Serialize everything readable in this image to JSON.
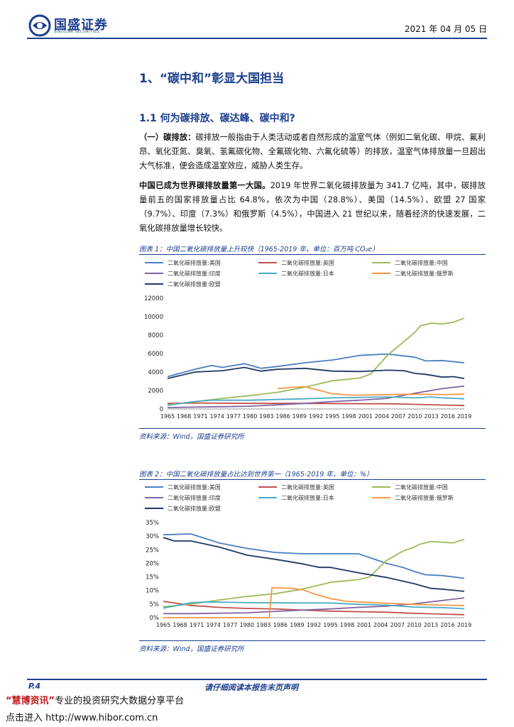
{
  "header": {
    "brand": "国盛证券",
    "brand_sub": "SINOLINK SECURITIES",
    "date": "2021 年 04 月 05 日"
  },
  "section": {
    "h1": "1、“碳中和”彰显大国担当",
    "h2": "1.1 何为碳排放、碳达峰、碳中和?"
  },
  "para1": {
    "lead": "（一）碳排放：",
    "body": "碳排放一般指由于人类活动或者自然形成的温室气体（例如二氧化碳、甲烷、氟利昂、氧化亚氮、臭氧、氢氟碳化物、全氟碳化物、六氟化硫等）的排放，温室气体排放量一旦超出大气标准，便会造成温室效应，威胁人类生存。"
  },
  "para2": {
    "lead": "中国已成为世界碳排放量第一大国。",
    "body": "2019 年世界二氧化碳排放量为 341.7 亿吨，其中，碳排放量前五的国家排放量占比 64.8%，依次为中国（28.8%）、美国（14.5%）、欧盟 27 国家（9.7%）、印度（7.3%）和俄罗斯（4.5%），中国进入 21 世纪以来，随着经济的快速发展，二氧化碳排放量增长较快。"
  },
  "figure1": {
    "caption": "图表 1：中国二氧化碳排放量上升较快（1965-2019 年，单位：百万吨 CO₂e）",
    "source": "资料来源：Wind，国盛证券研究所"
  },
  "figure2": {
    "caption": "图表 2：中国二氧化碳排放量占比达到世界第一（1965-2019 年，单位：%）",
    "source": "资料来源：Wind，国盛证券研究所"
  },
  "footer": {
    "page": "P.4",
    "disclaimer": "请仔细阅读本报告末页声明",
    "watermark_quote_name": "“慧博资讯”",
    "watermark_line1": "专业的投资研究大数据分享平台",
    "watermark_line2": "点击进入 http://www.hibor.com.cn"
  },
  "chart_data": [
    {
      "type": "line",
      "title": "",
      "xlabel": "",
      "ylabel": "",
      "ylim": [
        0,
        12000
      ],
      "yticks": [
        0,
        2000,
        4000,
        6000,
        8000,
        10000,
        12000
      ],
      "ytick_labels": [
        "0",
        "2000",
        "4000",
        "6000",
        "8000",
        "10000",
        "12000"
      ],
      "x_start": 1965,
      "x_end": 2019,
      "xtick_labels": [
        "1965",
        "1968",
        "1971",
        "1974",
        "1977",
        "1980",
        "1983",
        "1986",
        "1989",
        "1992",
        "1995",
        "1998",
        "2001",
        "2004",
        "2007",
        "2010",
        "2013",
        "2016",
        "2019"
      ],
      "grid": false,
      "legend": "top",
      "series": [
        {
          "name": "二氧化碳排放量:美国",
          "color": "#4a7fc1",
          "x": [
            1965,
            1970,
            1973,
            1975,
            1979,
            1982,
            1985,
            1990,
            1995,
            2000,
            2005,
            2008,
            2010,
            2012,
            2015,
            2019
          ],
          "values": [
            3500,
            4300,
            4700,
            4500,
            4900,
            4400,
            4600,
            5000,
            5300,
            5800,
            5950,
            5750,
            5600,
            5200,
            5250,
            5000
          ]
        },
        {
          "name": "二氧化碳排放量:英国",
          "color": "#c0504d",
          "x": [
            1965,
            1970,
            1980,
            1990,
            2000,
            2005,
            2010,
            2015,
            2019
          ],
          "values": [
            600,
            650,
            600,
            600,
            560,
            560,
            500,
            420,
            370
          ]
        },
        {
          "name": "二氧化碳排放量:中国",
          "color": "#9bbb59",
          "x": [
            1965,
            1970,
            1975,
            1980,
            1985,
            1990,
            1995,
            2000,
            2002,
            2005,
            2008,
            2010,
            2011,
            2013,
            2015,
            2017,
            2019
          ],
          "values": [
            450,
            800,
            1150,
            1450,
            1800,
            2350,
            3050,
            3350,
            3800,
            5800,
            7300,
            8300,
            9000,
            9300,
            9200,
            9400,
            9830
          ]
        },
        {
          "name": "二氧化碳排放量:印度",
          "color": "#8064a2",
          "x": [
            1965,
            1970,
            1975,
            1980,
            1985,
            1990,
            1995,
            2000,
            2005,
            2010,
            2015,
            2019
          ],
          "values": [
            150,
            200,
            250,
            300,
            450,
            600,
            800,
            950,
            1150,
            1700,
            2200,
            2480
          ]
        },
        {
          "name": "二氧化碳排放量:日本",
          "color": "#4bacc6",
          "x": [
            1965,
            1970,
            1973,
            1980,
            1990,
            1995,
            2000,
            2005,
            2010,
            2013,
            2015,
            2019
          ],
          "values": [
            400,
            800,
            950,
            950,
            1100,
            1200,
            1250,
            1300,
            1200,
            1300,
            1200,
            1100
          ]
        },
        {
          "name": "二氧化碳排放量:俄罗斯",
          "color": "#f79646",
          "x": [
            1985,
            1988,
            1990,
            1992,
            1995,
            1998,
            2000,
            2005,
            2010,
            2015,
            2019
          ],
          "values": [
            2200,
            2350,
            2400,
            2100,
            1650,
            1500,
            1500,
            1550,
            1600,
            1550,
            1600
          ]
        },
        {
          "name": "二氧化碳排放量:欧盟",
          "color": "#1f3864",
          "x": [
            1965,
            1970,
            1975,
            1979,
            1982,
            1985,
            1990,
            1995,
            2000,
            2005,
            2008,
            2010,
            2012,
            2015,
            2017,
            2019
          ],
          "values": [
            3300,
            4000,
            4150,
            4500,
            4100,
            4300,
            4400,
            4100,
            4050,
            4200,
            4150,
            3850,
            3750,
            3450,
            3500,
            3300
          ]
        }
      ]
    },
    {
      "type": "line",
      "title": "",
      "xlabel": "",
      "ylabel": "",
      "ylim": [
        0,
        35
      ],
      "yticks": [
        0,
        5,
        10,
        15,
        20,
        25,
        30,
        35
      ],
      "ytick_labels": [
        "0%",
        "5%",
        "10%",
        "15%",
        "20%",
        "25%",
        "30%",
        "35%"
      ],
      "x_start": 1965,
      "x_end": 2019,
      "xtick_labels": [
        "1965",
        "1968",
        "1971",
        "1974",
        "1977",
        "1980",
        "1983",
        "1986",
        "1989",
        "1992",
        "1995",
        "1998",
        "2001",
        "2004",
        "2007",
        "2010",
        "2013",
        "2016",
        "2019"
      ],
      "grid": false,
      "legend": "top",
      "series": [
        {
          "name": "二氧化碳排放量:美国",
          "color": "#4a7fc1",
          "x": [
            1965,
            1970,
            1975,
            1980,
            1985,
            1990,
            1995,
            2000,
            2005,
            2008,
            2010,
            2012,
            2015,
            2019
          ],
          "values": [
            30.5,
            30.8,
            27.5,
            25.5,
            24,
            23.5,
            23.5,
            23.5,
            20,
            18.5,
            17,
            15.8,
            15.5,
            14.5
          ]
        },
        {
          "name": "二氧化碳排放量:英国",
          "color": "#c0504d",
          "x": [
            1965,
            1970,
            1975,
            1980,
            1985,
            1990,
            1995,
            2000,
            2005,
            2010,
            2015,
            2019
          ],
          "values": [
            6,
            4.5,
            3.8,
            3.4,
            3.2,
            2.8,
            2.4,
            2.2,
            2.0,
            1.6,
            1.3,
            1.1
          ]
        },
        {
          "name": "二氧化碳排放量:中国",
          "color": "#9bbb59",
          "x": [
            1965,
            1970,
            1975,
            1980,
            1985,
            1990,
            1995,
            2000,
            2002,
            2005,
            2008,
            2010,
            2011,
            2013,
            2015,
            2017,
            2019
          ],
          "values": [
            4,
            5,
            6.5,
            7.8,
            8.8,
            10.5,
            13,
            14,
            15,
            21,
            24.5,
            26,
            27,
            28,
            27.8,
            27.5,
            28.8
          ]
        },
        {
          "name": "二氧化碳排放量:印度",
          "color": "#8064a2",
          "x": [
            1965,
            1970,
            1980,
            1990,
            1995,
            2000,
            2005,
            2010,
            2015,
            2019
          ],
          "values": [
            1.5,
            1.5,
            1.8,
            2.8,
            3.2,
            3.8,
            4.2,
            5.1,
            6.3,
            7.3
          ]
        },
        {
          "name": "二氧化碳排放量:日本",
          "color": "#4bacc6",
          "x": [
            1965,
            1970,
            1973,
            1980,
            1990,
            1995,
            2000,
            2005,
            2010,
            2015,
            2019
          ],
          "values": [
            3.5,
            5.5,
            5.8,
            5.5,
            5.4,
            5.4,
            4.9,
            4.6,
            3.9,
            3.7,
            3.3
          ]
        },
        {
          "name": "二氧化碳排放量:俄罗斯",
          "color": "#f79646",
          "x": [
            1965,
            1984,
            1984.5,
            1985,
            1988,
            1990,
            1992,
            1995,
            1998,
            2000,
            2005,
            2010,
            2015,
            2019
          ],
          "values": [
            0,
            0,
            11,
            11,
            10.8,
            10.3,
            8.8,
            7,
            6,
            5.8,
            5.3,
            4.9,
            4.6,
            4.5
          ]
        },
        {
          "name": "二氧化碳排放量:欧盟",
          "color": "#1f3864",
          "x": [
            1965,
            1967,
            1970,
            1975,
            1980,
            1985,
            1990,
            1993,
            1995,
            2000,
            2005,
            2010,
            2013,
            2015,
            2019
          ],
          "values": [
            29.5,
            28.2,
            28.2,
            26,
            23,
            21.5,
            19.8,
            18.5,
            18.5,
            16.5,
            14.8,
            12.5,
            10.8,
            10.5,
            9.7
          ]
        }
      ]
    }
  ]
}
